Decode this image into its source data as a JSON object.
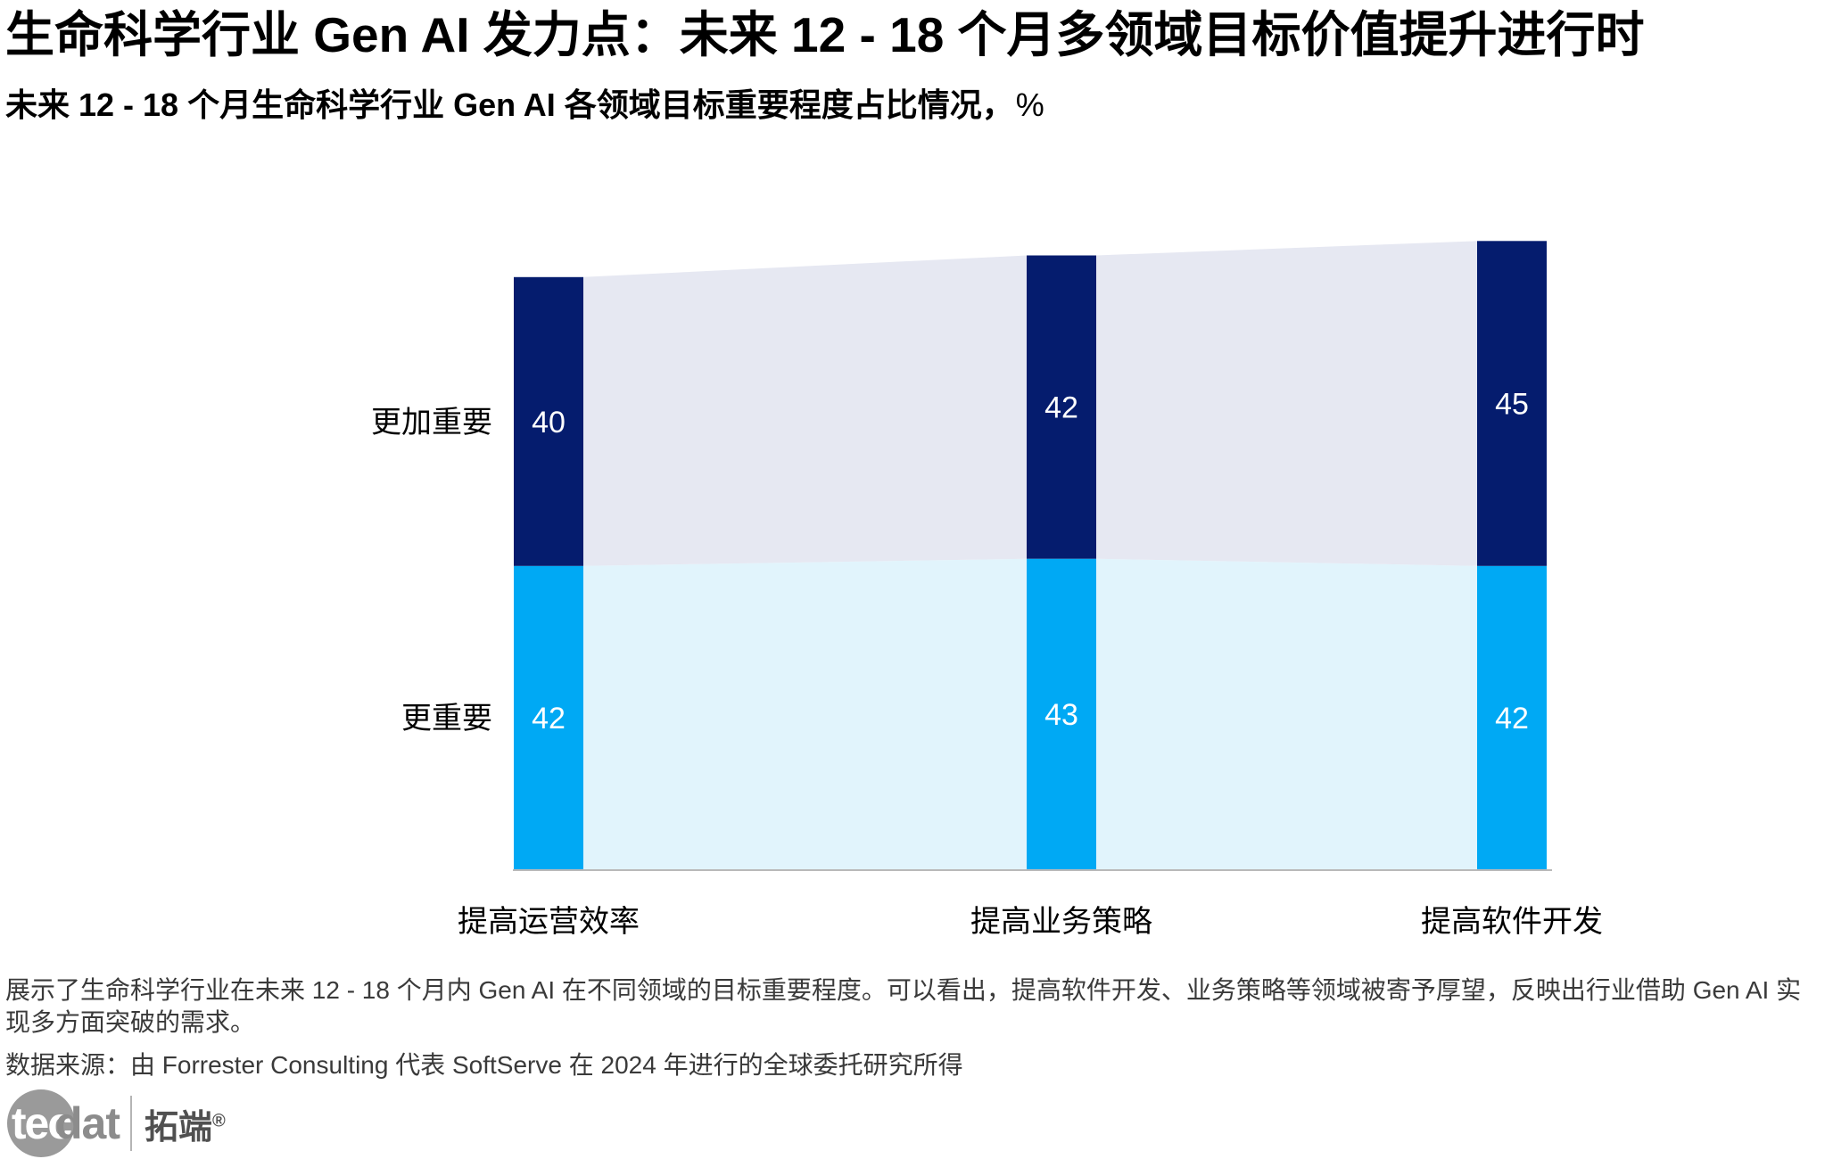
{
  "title": "生命科学行业 Gen AI 发力点：未来 12 - 18 个月多领域目标价值提升进行时",
  "subtitle": "未来 12 - 18 个月生命科学行业 Gen AI 各领域目标重要程度占比情况，",
  "subtitle_unit": "%",
  "chart_data": {
    "type": "bar",
    "stacked": true,
    "categories": [
      "提高运营效率",
      "提高业务策略",
      "提高软件开发"
    ],
    "series": [
      {
        "name": "更重要",
        "values": [
          42,
          43,
          42
        ],
        "color": "#00a9f4",
        "band_color": "#e1f4fc",
        "label_color": "#ffffff"
      },
      {
        "name": "更加重要",
        "values": [
          40,
          42,
          45
        ],
        "color": "#051c6e",
        "band_color": "#e6e8f2",
        "label_color": "#ffffff"
      }
    ],
    "ylim": [
      0,
      100
    ],
    "grid": false,
    "legend": "left, inline with stacked segments"
  },
  "note": "展示了生命科学行业在未来 12 - 18 个月内 Gen AI 在不同领域的目标重要程度。可以看出，提高软件开发、业务策略等领域被寄予厚望，反映出行业借助 Gen AI 实现多方面突破的需求。",
  "source": "数据来源：由 Forrester Consulting 代表 SoftServe 在 2024 年进行的全球委托研究所得",
  "logo": {
    "badge": "tec",
    "word": "dat",
    "cn": "拓端",
    "reg": "®"
  }
}
